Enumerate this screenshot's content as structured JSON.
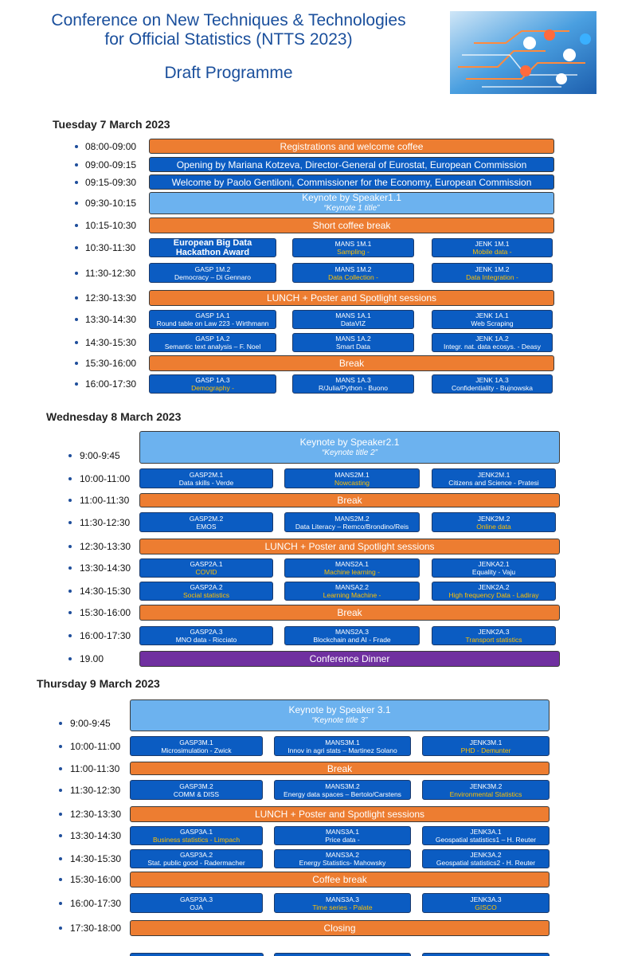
{
  "header": {
    "title_lines": [
      "Conference on New Techniques & Technologies",
      "for Official Statistics (NTTS 2023)"
    ],
    "subtitle": "Draft Programme"
  },
  "days": [
    {
      "title": "Tuesday 7 March 2023",
      "rows": [
        {
          "time": "08:00-09:00",
          "text": "Registrations and welcome coffee",
          "color": "#ed7d31"
        },
        {
          "time": "09:00-09:15",
          "text": "Opening by Mariana Kotzeva, Director-General of Eurostat, European Commission",
          "color": "#0b5cc2"
        },
        {
          "time": "09:15-09:30",
          "text": "Welcome by Paolo Gentiloni, Commissioner for the Economy, European Commission",
          "color": "#0b5cc2"
        },
        {
          "time": "09:30-10:15",
          "text": "Keynote by Speaker1.1",
          "subtitle": "“Keynote 1 title”",
          "color": "#6cb2ef"
        },
        {
          "time": "10:15-10:30",
          "text": "Short coffee break",
          "color": "#ed7d31"
        },
        {
          "time": "10:30-11:30",
          "sessions": [
            {
              "code": "European Big Data Hackathon Award"
            },
            {
              "code": "MANS 1M.1",
              "topic": "Sampling -",
              "topic_color": "#ffc000"
            },
            {
              "code": "JENK 1M.1",
              "topic": "Mobile data -",
              "topic_color": "#ffc000"
            }
          ]
        },
        {
          "time": "11:30-12:30",
          "sessions": [
            {
              "code": "GASP 1M.2",
              "topic": "Democracy – Di Gennaro",
              "topic_color": "#ffffff"
            },
            {
              "code": "MANS 1M.2",
              "topic": "Data Collection -",
              "topic_color": "#ffc000"
            },
            {
              "code": "JENK 1M.2",
              "topic": "Data Integration -",
              "topic_color": "#ffc000"
            }
          ]
        },
        {
          "time": "12:30-13:30",
          "text": "LUNCH + Poster and Spotlight sessions",
          "color": "#ed7d31"
        },
        {
          "time": "13:30-14:30",
          "sessions": [
            {
              "code": "GASP 1A.1",
              "topic": "Round table on Law 223 - Wirthmann",
              "topic_color": "#ffffff"
            },
            {
              "code": "MANS 1A.1",
              "topic": "DataVIZ",
              "topic_color": "#ffffff"
            },
            {
              "code": "JENK 1A.1",
              "topic": "Web Scraping",
              "topic_color": "#ffffff"
            }
          ]
        },
        {
          "time": "14:30-15:30",
          "sessions": [
            {
              "code": "GASP 1A.2",
              "topic": "Semantic text analysis – F. Noel",
              "topic_color": "#ffffff"
            },
            {
              "code": "MANS 1A.2",
              "topic": "Smart Data",
              "topic_color": "#ffffff"
            },
            {
              "code": "JENK 1A.2",
              "topic": "Integr. nat. data ecosys. - Deasy",
              "topic_color": "#ffffff"
            }
          ]
        },
        {
          "time": "15:30-16:00",
          "text": "Break",
          "color": "#ed7d31"
        },
        {
          "time": "16:00-17:30",
          "sessions": [
            {
              "code": "GASP 1A.3",
              "topic": "Demography -",
              "topic_color": "#ffc000"
            },
            {
              "code": "MANS 1A.3",
              "topic": "R/Julia/Python - Buono",
              "topic_color": "#ffffff"
            },
            {
              "code": "JENK 1A.3",
              "topic": "Confidentiality - Bujnowska",
              "topic_color": "#ffffff"
            }
          ]
        }
      ]
    },
    {
      "title": "Wednesday 8 March 2023",
      "rows": [
        {
          "time": "9:00-9:45",
          "text": "Keynote by Speaker2.1",
          "subtitle": "“Keynote title 2”",
          "color": "#6cb2ef"
        },
        {
          "time": "10:00-11:00",
          "sessions": [
            {
              "code": "GASP2M.1",
              "topic": "Data skills - Verde",
              "topic_color": "#ffffff"
            },
            {
              "code": "MANS2M.1",
              "topic": "Nowcasting",
              "topic_color": "#ffc000"
            },
            {
              "code": "JENK2M.1",
              "topic": "Citizens and Science - Pratesi",
              "topic_color": "#ffffff"
            }
          ]
        },
        {
          "time": "11:00-11:30",
          "text": "Break",
          "color": "#ed7d31"
        },
        {
          "time": "11:30-12:30",
          "sessions": [
            {
              "code": "GASP2M.2",
              "topic": "EMOS",
              "topic_color": "#ffffff"
            },
            {
              "code": "MANS2M.2",
              "topic": "Data Literacy – Remco/Brondino/Reis",
              "topic_color": "#ffffff"
            },
            {
              "code": "JENK2M.2",
              "topic": "Online data",
              "topic_color": "#ffc000"
            }
          ]
        },
        {
          "time": "12:30-13:30",
          "text": "LUNCH + Poster and Spotlight sessions",
          "color": "#ed7d31"
        },
        {
          "time": "13:30-14:30",
          "sessions": [
            {
              "code": "GASP2A.1",
              "topic": "COVID",
              "topic_color": "#ffc000"
            },
            {
              "code": "MANS2A.1",
              "topic": "Machine learning -",
              "topic_color": "#ffc000"
            },
            {
              "code": "JENKA2.1",
              "topic": "Equality  - Vaju",
              "topic_color": "#ffffff"
            }
          ]
        },
        {
          "time": "14:30-15:30",
          "sessions": [
            {
              "code": "GASP2A.2",
              "topic": "Social statistics",
              "topic_color": "#ffc000"
            },
            {
              "code": "MANSA2.2",
              "topic": "Learning Machine -",
              "topic_color": "#ffc000"
            },
            {
              "code": "JENK2A.2",
              "topic": "High frequency Data - Ladiray",
              "topic_color": "#ffc000"
            }
          ]
        },
        {
          "time": "15:30-16:00",
          "text": "Break",
          "color": "#ed7d31"
        },
        {
          "time": "16:00-17:30",
          "sessions": [
            {
              "code": "GASP2A.3",
              "topic": "MNO data - Ricciato",
              "topic_color": "#ffffff"
            },
            {
              "code": "MANS2A.3",
              "topic": "Blockchain and AI - Frade",
              "topic_color": "#ffffff"
            },
            {
              "code": "JENK2A.3",
              "topic": "Transport statistics",
              "topic_color": "#ffc000"
            }
          ]
        },
        {
          "time": "19.00",
          "text": "Conference Dinner",
          "color": "#7030a0"
        }
      ]
    },
    {
      "title": "Thursday 9 March 2023",
      "rows": [
        {
          "time": "9:00-9:45",
          "text": "Keynote by Speaker 3.1",
          "subtitle": "“Keynote title 3”",
          "color": "#6cb2ef"
        },
        {
          "time": "10:00-11:00",
          "sessions": [
            {
              "code": "GASP3M.1",
              "topic": "Microsimulation - Zwick",
              "topic_color": "#ffffff"
            },
            {
              "code": "MANS3M.1",
              "topic": "Innov in agri stats – Martinez Solano",
              "topic_color": "#ffffff"
            },
            {
              "code": "JENK3M.1",
              "topic": "PHD - Demunter",
              "topic_color": "#ffc000"
            }
          ]
        },
        {
          "time": "11:00-11:30",
          "text": "Break",
          "color": "#ed7d31"
        },
        {
          "time": "11:30-12:30",
          "sessions": [
            {
              "code": "GASP3M.2",
              "topic": "COMM & DISS",
              "topic_color": "#ffffff"
            },
            {
              "code": "MANS3M.2",
              "topic": "Energy data spaces – Bertolo/Carstens",
              "topic_color": "#ffffff"
            },
            {
              "code": "JENK3M.2",
              "topic": "Environmental Statistics",
              "topic_color": "#ffc000"
            }
          ]
        },
        {
          "time": "12:30-13:30",
          "text": "LUNCH + Poster and Spotlight sessions",
          "color": "#ed7d31"
        },
        {
          "time": "13:30-14:30",
          "sessions": [
            {
              "code": "GASP3A.1",
              "topic": "Business statistics - Limpach",
              "topic_color": "#ffc000"
            },
            {
              "code": "MANS3A.1",
              "topic": "Price data -",
              "topic_color": "#ffffff"
            },
            {
              "code": "JENK3A.1",
              "topic": "Geospatial statistics1 – H. Reuter",
              "topic_color": "#ffffff"
            }
          ]
        },
        {
          "time": "14:30-15:30",
          "sessions": [
            {
              "code": "GASP3A.2",
              "topic": "Stat. public good - Radermacher",
              "topic_color": "#ffffff"
            },
            {
              "code": "MANS3A.2",
              "topic": "Energy Statistics- Mahowsky",
              "topic_color": "#ffffff"
            },
            {
              "code": "JENK3A.2",
              "topic": "Geospatial statistics2 - H. Reuter",
              "topic_color": "#ffffff"
            }
          ]
        },
        {
          "time": "15:30-16:00",
          "text": "Coffee break",
          "color": "#ed7d31"
        },
        {
          "time": "16:00-17:30",
          "sessions": [
            {
              "code": "GASP3A.3",
              "topic": "OJA",
              "topic_color": "#ffffff"
            },
            {
              "code": "MANS3A.3",
              "topic": "Time series - Palate",
              "topic_color": "#ffc000"
            },
            {
              "code": "JENK3A.3",
              "topic": "GISCO",
              "topic_color": "#ffc000"
            }
          ]
        },
        {
          "time": "17:30-18:00",
          "text": "Closing",
          "color": "#ed7d31"
        }
      ]
    }
  ]
}
